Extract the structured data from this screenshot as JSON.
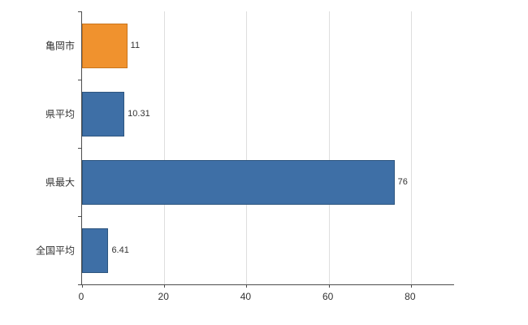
{
  "chart_data": {
    "type": "bar",
    "orientation": "horizontal",
    "categories": [
      "亀岡市",
      "県平均",
      "県最大",
      "全国平均"
    ],
    "values": [
      11,
      10.31,
      76,
      6.41
    ],
    "value_labels": [
      "11",
      "10.31",
      "76",
      "6.41"
    ],
    "bar_colors": [
      "#f0922e",
      "#3e6fa6",
      "#3e6fa6",
      "#3e6fa6"
    ],
    "bar_border_colors": [
      "#c9751d",
      "#2e567f",
      "#2e567f",
      "#2e567f"
    ],
    "x_ticks": [
      0,
      20,
      40,
      60,
      80
    ],
    "xlim": [
      0,
      90.5
    ],
    "grid": true,
    "legend": "none",
    "title": "",
    "xlabel": "",
    "ylabel": ""
  }
}
